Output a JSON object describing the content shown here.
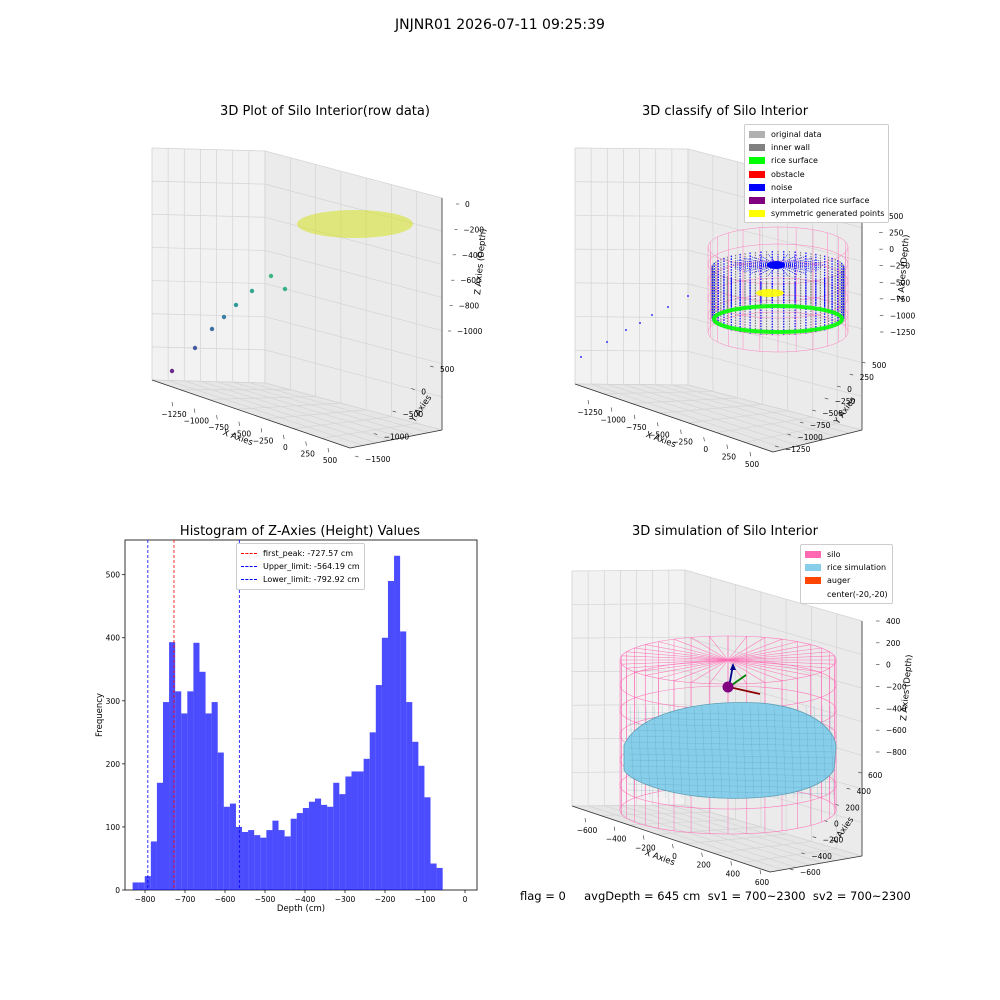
{
  "figure_title": "JNJNR01 2026-07-11 09:25:39",
  "panel1": {
    "title": "3D Plot of Silo Interior(row data)",
    "x_label": "X Axies",
    "y_label": "Y Axies",
    "z_label": "Z Axies (Depth)",
    "x_ticks": [
      "−1250",
      "−1000",
      "−750",
      "−500",
      "−250",
      "0",
      "250",
      "500"
    ],
    "y_ticks": [
      "500",
      "0",
      "−500",
      "−1000",
      "−1500"
    ],
    "z_ticks": [
      "0",
      "−200",
      "−400",
      "−600",
      "−800",
      "−1000"
    ]
  },
  "panel2": {
    "title": "3D classify of Silo Interior",
    "x_label": "X Axies",
    "y_label": "Y Axies",
    "z_label": "Z Axies (Depth)",
    "x_ticks": [
      "−1250",
      "−1000",
      "−750",
      "−500",
      "−250",
      "0",
      "250",
      "500"
    ],
    "y_ticks": [
      "500",
      "250",
      "0",
      "−250",
      "−500",
      "−750",
      "−1000",
      "−1250"
    ],
    "z_ticks": [
      "500",
      "250",
      "0",
      "−250",
      "−500",
      "−750",
      "−1000",
      "−1250"
    ],
    "legend": [
      {
        "label": "original data",
        "color": "#b0b0b0"
      },
      {
        "label": "inner wall",
        "color": "#808080"
      },
      {
        "label": "rice surface",
        "color": "#00ff00"
      },
      {
        "label": "obstacle",
        "color": "#ff0000"
      },
      {
        "label": "noise",
        "color": "#0000ff"
      },
      {
        "label": "interpolated rice surface",
        "color": "#800080"
      },
      {
        "label": "symmetric generated points",
        "color": "#ffff00"
      }
    ]
  },
  "panel3": {
    "title": "Histogram of Z-Axies (Height) Values",
    "x_label": "Depth (cm)",
    "y_label": "Frequency",
    "legend": [
      {
        "label": "first_peak: -727.57 cm",
        "color": "#ff0000"
      },
      {
        "label": "Upper_limit: -564.19 cm",
        "color": "#0000ff"
      },
      {
        "label": "Lower_limit: -792.92 cm",
        "color": "#0000ff"
      }
    ]
  },
  "panel4": {
    "title": "3D simulation of Silo Interior",
    "x_label": "X Axies",
    "y_label": "Y Axies",
    "z_label": "Z Axies (Depth)",
    "x_ticks": [
      "−600",
      "−400",
      "−200",
      "0",
      "200",
      "400",
      "600"
    ],
    "y_ticks": [
      "600",
      "400",
      "200",
      "0",
      "−200",
      "−400",
      "−600"
    ],
    "z_ticks": [
      "400",
      "200",
      "0",
      "−200",
      "−400",
      "−600",
      "−800"
    ],
    "legend": [
      {
        "label": "silo",
        "color": "#ff69b4"
      },
      {
        "label": "rice simulation",
        "color": "#87ceeb"
      },
      {
        "label": "auger",
        "color": "#ff4500"
      },
      {
        "label": "center(-20,-20)",
        "color": ""
      }
    ]
  },
  "footer": "flag = 0     avgDepth = 645 cm  sv1 = 700~2300  sv2 = 700~2300",
  "chart_data": [
    {
      "type": "bar",
      "title": "Histogram of Z-Axies (Height) Values",
      "xlabel": "Depth (cm)",
      "ylabel": "Frequency",
      "xlim": [
        -850,
        30
      ],
      "ylim": [
        0,
        555
      ],
      "x_ticks": [
        -800,
        -700,
        -600,
        -500,
        -400,
        -300,
        -200,
        -100,
        0
      ],
      "y_ticks": [
        0,
        100,
        200,
        300,
        400,
        500
      ],
      "bin_width": 15.2,
      "bin_start": -831,
      "values": [
        12,
        12,
        22,
        77,
        170,
        298,
        393,
        315,
        280,
        315,
        392,
        346,
        280,
        298,
        218,
        132,
        137,
        100,
        92,
        95,
        87,
        83,
        95,
        110,
        95,
        85,
        113,
        122,
        130,
        140,
        145,
        135,
        132,
        170,
        152,
        180,
        188,
        188,
        208,
        250,
        325,
        400,
        490,
        530,
        410,
        298,
        235,
        197,
        147,
        42,
        35
      ],
      "color": "#0000ff",
      "vlines": [
        {
          "name": "first_peak: -727.57 cm",
          "x": -727.57,
          "color": "#ff0000"
        },
        {
          "name": "Upper_limit: -564.19 cm",
          "x": -564.19,
          "color": "#0000ff"
        },
        {
          "name": "Lower_limit: -792.92 cm",
          "x": -792.92,
          "color": "#0000ff"
        }
      ]
    }
  ]
}
